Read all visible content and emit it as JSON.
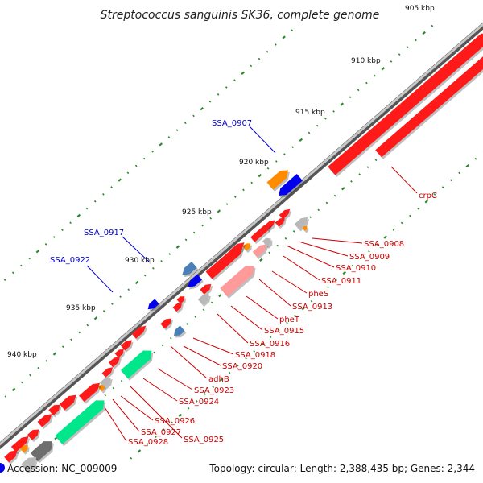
{
  "title": "Streptococcus sanguinis SK36, complete genome",
  "footer": {
    "accession": "Accession: NC_009009",
    "summary": "Topology: circular; Length: 2,388,435 bp; Genes: 2,344"
  },
  "colors": {
    "forward": "#ff1a1a",
    "forward_rna": "#ff9a9a",
    "reverse": "#0000ee",
    "reverse_light": "#4a7fb8",
    "orange": "#ff8c00",
    "gray": "#b8b8b8",
    "dark_gray": "#6e6e6e",
    "green": "#00e68a",
    "tick": "#2a8a2a",
    "red_label": "#cc0000",
    "blue_label": "#0000cc"
  },
  "kbp_ticks": [
    "905 kbp",
    "910 kbp",
    "915 kbp",
    "920 kbp",
    "925 kbp",
    "930 kbp",
    "935 kbp",
    "940 kbp"
  ],
  "red_labels": [
    "crpC",
    "SSA_0908",
    "SSA_0909",
    "SSA_0910",
    "SSA_0911",
    "pheS",
    "SSA_0913",
    "pheT",
    "SSA_0915",
    "SSA_0916",
    "SSA_0918",
    "SSA_0920",
    "adhB",
    "SSA_0923",
    "SSA_0924",
    "SSA_0926",
    "SSA_0927",
    "SSA_0925",
    "SSA_0928"
  ],
  "blue_labels": [
    "SSA_0907",
    "SSA_0917",
    "SSA_0922"
  ]
}
